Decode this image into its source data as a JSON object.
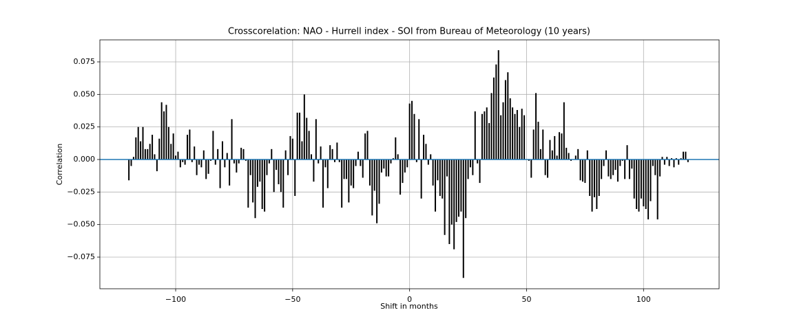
{
  "chart_data": {
    "type": "xcorr",
    "title": "Crosscorelation: NAO - Hurrell index - SOI from Bureau of Meteorology (10 years)",
    "xlabel": "Shift in months",
    "ylabel": "Correlation",
    "color": "#000000",
    "baseline_color": "#1f77b4",
    "grid": true,
    "xlim": [
      -132.4,
      132.3
    ],
    "ylim": [
      -0.0993,
      0.0919
    ],
    "xticks": [
      {
        "value": -100,
        "label": "−100"
      },
      {
        "value": -50,
        "label": "−50"
      },
      0,
      50,
      100
    ],
    "yticks": [
      {
        "value": -0.075,
        "label": "−0.075"
      },
      {
        "value": -0.05,
        "label": "−0.050"
      },
      {
        "value": -0.025,
        "label": "−0.025"
      },
      {
        "value": 0,
        "label": "0.000"
      },
      {
        "value": 0.025,
        "label": "0.025"
      },
      {
        "value": 0.05,
        "label": "0.050"
      },
      {
        "value": 0.075,
        "label": "0.075"
      }
    ],
    "x": [
      -120,
      -119,
      -118,
      -117,
      -116,
      -115,
      -114,
      -113,
      -112,
      -111,
      -110,
      -109,
      -108,
      -107,
      -106,
      -105,
      -104,
      -103,
      -102,
      -101,
      -100,
      -99,
      -98,
      -97,
      -96,
      -95,
      -94,
      -93,
      -92,
      -91,
      -90,
      -89,
      -88,
      -87,
      -86,
      -85,
      -84,
      -83,
      -82,
      -81,
      -80,
      -79,
      -78,
      -77,
      -76,
      -75,
      -74,
      -73,
      -72,
      -71,
      -70,
      -69,
      -68,
      -67,
      -66,
      -65,
      -64,
      -63,
      -62,
      -61,
      -60,
      -59,
      -58,
      -57,
      -56,
      -55,
      -54,
      -53,
      -52,
      -51,
      -50,
      -49,
      -48,
      -47,
      -46,
      -45,
      -44,
      -43,
      -42,
      -41,
      -40,
      -39,
      -38,
      -37,
      -36,
      -35,
      -34,
      -33,
      -32,
      -31,
      -30,
      -29,
      -28,
      -27,
      -26,
      -25,
      -24,
      -23,
      -22,
      -21,
      -20,
      -19,
      -18,
      -17,
      -16,
      -15,
      -14,
      -13,
      -12,
      -11,
      -10,
      -9,
      -8,
      -7,
      -6,
      -5,
      -4,
      -3,
      -2,
      -1,
      0,
      1,
      2,
      3,
      4,
      5,
      6,
      7,
      8,
      9,
      10,
      11,
      12,
      13,
      14,
      15,
      16,
      17,
      18,
      19,
      20,
      21,
      22,
      23,
      24,
      25,
      26,
      27,
      28,
      29,
      30,
      31,
      32,
      33,
      34,
      35,
      36,
      37,
      38,
      39,
      40,
      41,
      42,
      43,
      44,
      45,
      46,
      47,
      48,
      49,
      50,
      51,
      52,
      53,
      54,
      55,
      56,
      57,
      58,
      59,
      60,
      61,
      62,
      63,
      64,
      65,
      66,
      67,
      68,
      69,
      70,
      71,
      72,
      73,
      74,
      75,
      76,
      77,
      78,
      79,
      80,
      81,
      82,
      83,
      84,
      85,
      86,
      87,
      88,
      89,
      90,
      91,
      92,
      93,
      94,
      95,
      96,
      97,
      98,
      99,
      100,
      101,
      102,
      103,
      104,
      105,
      106,
      107,
      108,
      109,
      110,
      111,
      112,
      113,
      114,
      115,
      116,
      117,
      118,
      119,
      120
    ],
    "values": [
      -0.016,
      -0.005,
      0.002,
      0.017,
      0.025,
      0.014,
      0.025,
      0.008,
      0.008,
      0.012,
      0.019,
      0.004,
      -0.009,
      0.016,
      0.044,
      0.037,
      0.042,
      0.025,
      0.012,
      0.02,
      0.003,
      0.006,
      -0.006,
      -0.002,
      -0.004,
      0.019,
      0.023,
      -0.002,
      0.01,
      -0.012,
      -0.004,
      -0.006,
      0.007,
      -0.015,
      -0.011,
      -0.001,
      0.022,
      -0.004,
      0.008,
      -0.022,
      0.014,
      -0.006,
      0.005,
      -0.02,
      0.031,
      -0.003,
      -0.01,
      -0.003,
      0.009,
      0.008,
      -0.001,
      -0.037,
      -0.012,
      -0.033,
      -0.045,
      -0.021,
      -0.017,
      -0.038,
      -0.04,
      -0.012,
      -0.003,
      0.008,
      -0.025,
      -0.008,
      -0.019,
      -0.025,
      -0.037,
      0.007,
      -0.012,
      0.018,
      0.016,
      -0.028,
      0.036,
      0.036,
      0.014,
      0.05,
      0.032,
      0.022,
      0.004,
      -0.017,
      0.031,
      -0.003,
      0.01,
      -0.037,
      -0.006,
      -0.022,
      0.011,
      0.008,
      -0.002,
      0.013,
      -0.002,
      -0.037,
      -0.015,
      -0.015,
      -0.033,
      -0.02,
      -0.022,
      -0.005,
      0.006,
      -0.005,
      -0.014,
      0.02,
      0.022,
      -0.02,
      -0.043,
      -0.024,
      -0.049,
      -0.034,
      -0.01,
      -0.007,
      -0.013,
      -0.013,
      -0.003,
      0.001,
      0.017,
      0.004,
      -0.027,
      -0.018,
      -0.01,
      -0.006,
      0.043,
      0.045,
      0.035,
      -0.002,
      0.031,
      -0.03,
      0.019,
      0.012,
      -0.004,
      0.004,
      -0.02,
      -0.04,
      -0.016,
      -0.028,
      -0.03,
      -0.058,
      -0.013,
      -0.065,
      -0.05,
      -0.069,
      -0.048,
      -0.044,
      -0.04,
      -0.091,
      -0.045,
      -0.015,
      -0.006,
      -0.012,
      0.037,
      -0.003,
      -0.018,
      0.035,
      0.037,
      0.04,
      0.028,
      0.051,
      0.063,
      0.073,
      0.084,
      0.034,
      0.044,
      0.061,
      0.067,
      0.047,
      0.04,
      0.035,
      0.038,
      0.025,
      0.039,
      0.034,
      0.0,
      -0.001,
      -0.014,
      0.023,
      0.051,
      0.029,
      0.008,
      0.023,
      -0.012,
      -0.014,
      0.015,
      0.007,
      0.018,
      0.003,
      0.021,
      0.02,
      0.044,
      0.009,
      0.005,
      -0.001,
      0.0,
      0.003,
      0.008,
      -0.016,
      -0.017,
      -0.018,
      0.007,
      -0.028,
      -0.04,
      -0.029,
      -0.038,
      -0.028,
      -0.015,
      -0.005,
      0.007,
      -0.013,
      -0.015,
      -0.012,
      -0.008,
      -0.017,
      -0.005,
      -0.001,
      -0.015,
      0.011,
      -0.015,
      -0.007,
      -0.03,
      -0.038,
      -0.04,
      -0.03,
      -0.036,
      -0.038,
      -0.046,
      -0.032,
      -0.005,
      -0.012,
      -0.046,
      -0.013,
      0.002,
      -0.004,
      0.002,
      -0.005,
      0.001,
      -0.006,
      0.001,
      -0.004,
      0.001,
      0.006,
      0.006,
      -0.002,
      0.0
    ]
  }
}
